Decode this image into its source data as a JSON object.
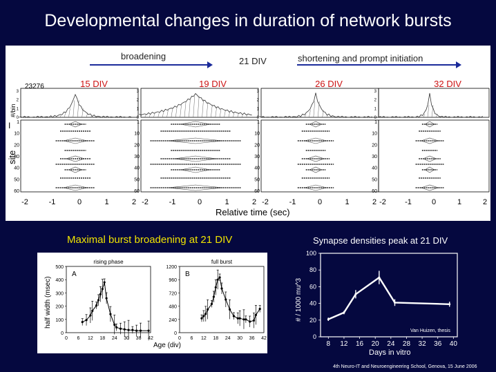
{
  "title": "Developmental changes in duration of network bursts",
  "top_panel": {
    "arrow_left_label": "broadening",
    "center_label": "21 DIV",
    "arrow_right_label": "shortening and prompt initiation",
    "id_label": "23276",
    "conditions": [
      "15 DIV",
      "19 DIV",
      "26 DIV",
      "32 DIV"
    ],
    "hist_ylabel": "#/bin",
    "site_label": "site",
    "xlabel": "Relative time (sec)",
    "x_ticks": [
      "-2",
      "-1",
      "0",
      "1",
      "2"
    ],
    "hist_ticks": [
      "0",
      "1",
      "2",
      "3"
    ],
    "site_ticks": [
      "1",
      "10",
      "20",
      "30",
      "40",
      "50",
      "60"
    ],
    "marker": "I",
    "colors": {
      "condition_label": "#cc1111",
      "arrow": "#1a2a9a"
    }
  },
  "bottom_left": {
    "heading": "Maximal burst broadening at 21 DIV",
    "ylabel": "half width (msec)",
    "xlabel": "Age (div)",
    "x_ticks": [
      "0",
      "6",
      "12",
      "18",
      "24",
      "30",
      "36",
      "42"
    ],
    "panels": [
      {
        "letter": "A",
        "title": "rising phase",
        "y_ticks": [
          "0",
          "100",
          "200",
          "300",
          "400",
          "500"
        ]
      },
      {
        "letter": "B",
        "title": "full burst",
        "y_ticks": [
          "0",
          "240",
          "480",
          "720",
          "960",
          "1200"
        ]
      }
    ]
  },
  "bottom_right": {
    "heading": "Synapse densities peak at 21 DIV",
    "ylabel": "# / 1000 mu^3",
    "xlabel": "Days in vitro",
    "note": "Van Huizen, thesis",
    "x_ticks": [
      "8",
      "12",
      "16",
      "20",
      "24",
      "28",
      "32",
      "36",
      "40"
    ],
    "y_ticks": [
      "0",
      "20",
      "40",
      "60",
      "80",
      "100"
    ]
  },
  "footer": "4th Neuro-IT and Neuroengineering School, Genova, 15 June 2006",
  "chart_data": [
    {
      "type": "line",
      "title": "rising phase",
      "xlabel": "Age (div)",
      "ylabel": "half width (msec)",
      "xlim": [
        0,
        42
      ],
      "ylim": [
        0,
        500
      ],
      "x": [
        8,
        10,
        12,
        13,
        15,
        16,
        17,
        18,
        19,
        20,
        22,
        24,
        25,
        27,
        29,
        31,
        33,
        35,
        37,
        41
      ],
      "y": [
        80,
        95,
        130,
        165,
        205,
        245,
        290,
        330,
        380,
        260,
        140,
        60,
        40,
        30,
        25,
        20,
        20,
        15,
        15,
        15
      ]
    },
    {
      "type": "line",
      "title": "full burst",
      "xlabel": "Age (div)",
      "ylabel": "",
      "xlim": [
        0,
        42
      ],
      "ylim": [
        0,
        1200
      ],
      "x": [
        11,
        12,
        13,
        14,
        16,
        17,
        18,
        19,
        20,
        21,
        23,
        25,
        27,
        29,
        30,
        32,
        33,
        35,
        37,
        38,
        40
      ],
      "y": [
        260,
        300,
        340,
        420,
        520,
        650,
        820,
        960,
        1000,
        800,
        600,
        420,
        300,
        260,
        260,
        240,
        240,
        200,
        220,
        320,
        430
      ]
    },
    {
      "type": "line",
      "title": "Synapse densities peak at 21 DIV",
      "xlabel": "Days in vitro",
      "ylabel": "# / 1000 mu^3",
      "xlim": [
        6,
        41
      ],
      "ylim": [
        0,
        100
      ],
      "x": [
        8,
        12,
        15,
        21,
        25,
        39
      ],
      "y": [
        21,
        29,
        51,
        71,
        41,
        39
      ]
    }
  ]
}
